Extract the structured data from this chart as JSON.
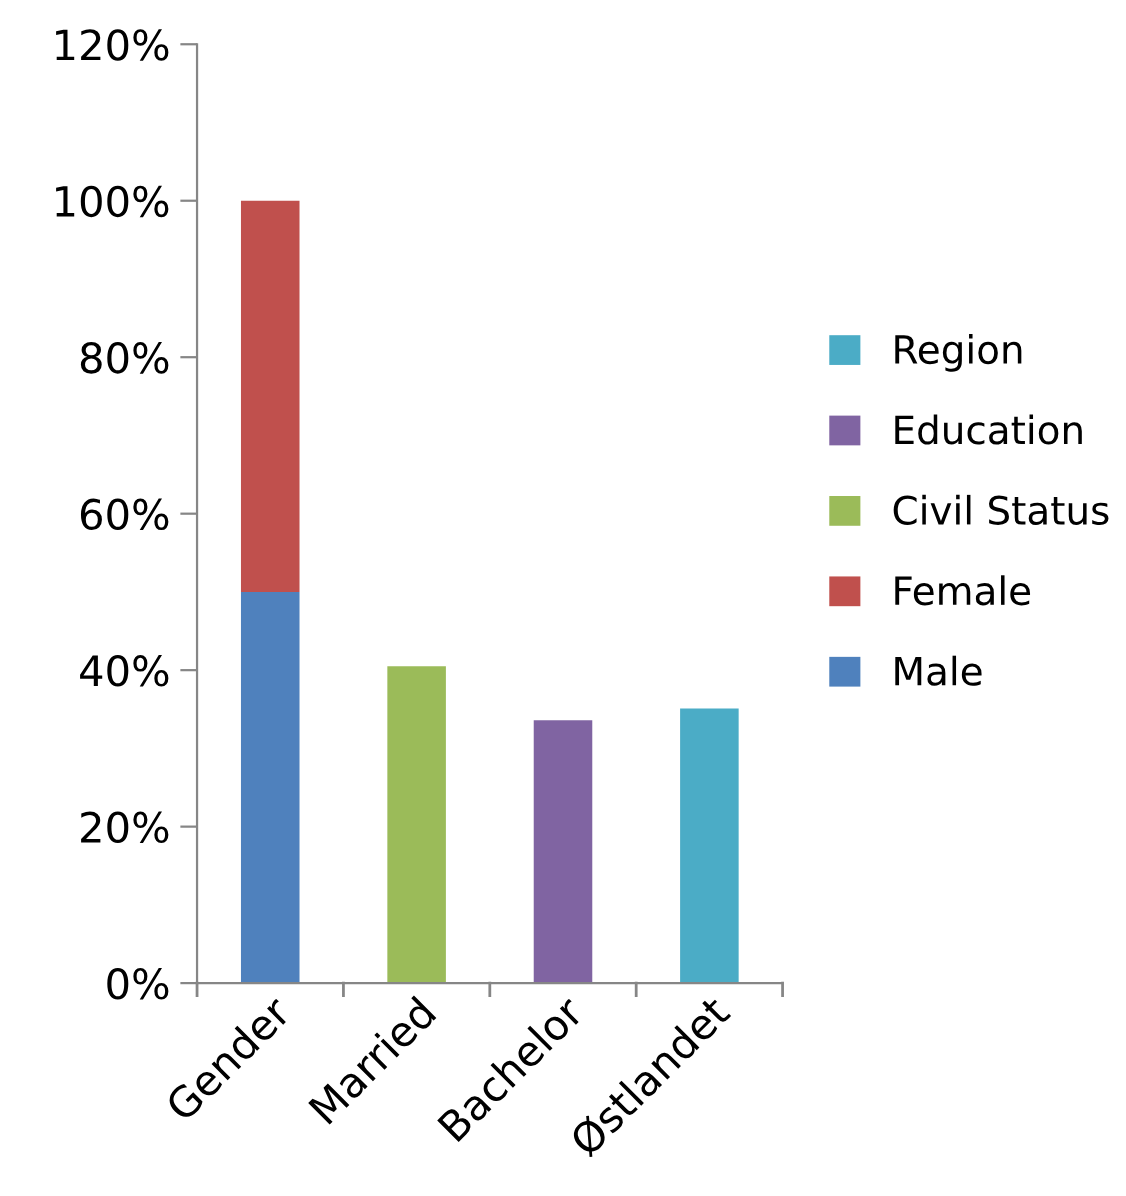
{
  "chart_data": {
    "type": "bar",
    "stacked": true,
    "categories": [
      "Gender",
      "Married",
      "Bachelor",
      "Østlandet"
    ],
    "series": [
      {
        "name": "Male",
        "color": "#4f81bd",
        "values": [
          50,
          null,
          null,
          null
        ]
      },
      {
        "name": "Female",
        "color": "#c0504d",
        "values": [
          50,
          null,
          null,
          null
        ]
      },
      {
        "name": "Civil Status",
        "color": "#9bbb59",
        "values": [
          null,
          40.5,
          null,
          null
        ]
      },
      {
        "name": "Education",
        "color": "#8064a2",
        "values": [
          null,
          null,
          33.6,
          null
        ]
      },
      {
        "name": "Region",
        "color": "#4bacc6",
        "values": [
          null,
          null,
          null,
          35.1
        ]
      }
    ],
    "ylim": [
      0,
      120
    ],
    "yticks": [
      {
        "value": 0,
        "label": "0%"
      },
      {
        "value": 20,
        "label": "20%"
      },
      {
        "value": 40,
        "label": "40%"
      },
      {
        "value": 60,
        "label": "60%"
      },
      {
        "value": 80,
        "label": "80%"
      },
      {
        "value": 100,
        "label": "100%"
      },
      {
        "value": 120,
        "label": "120%"
      }
    ],
    "grid": false,
    "legend": "right"
  }
}
